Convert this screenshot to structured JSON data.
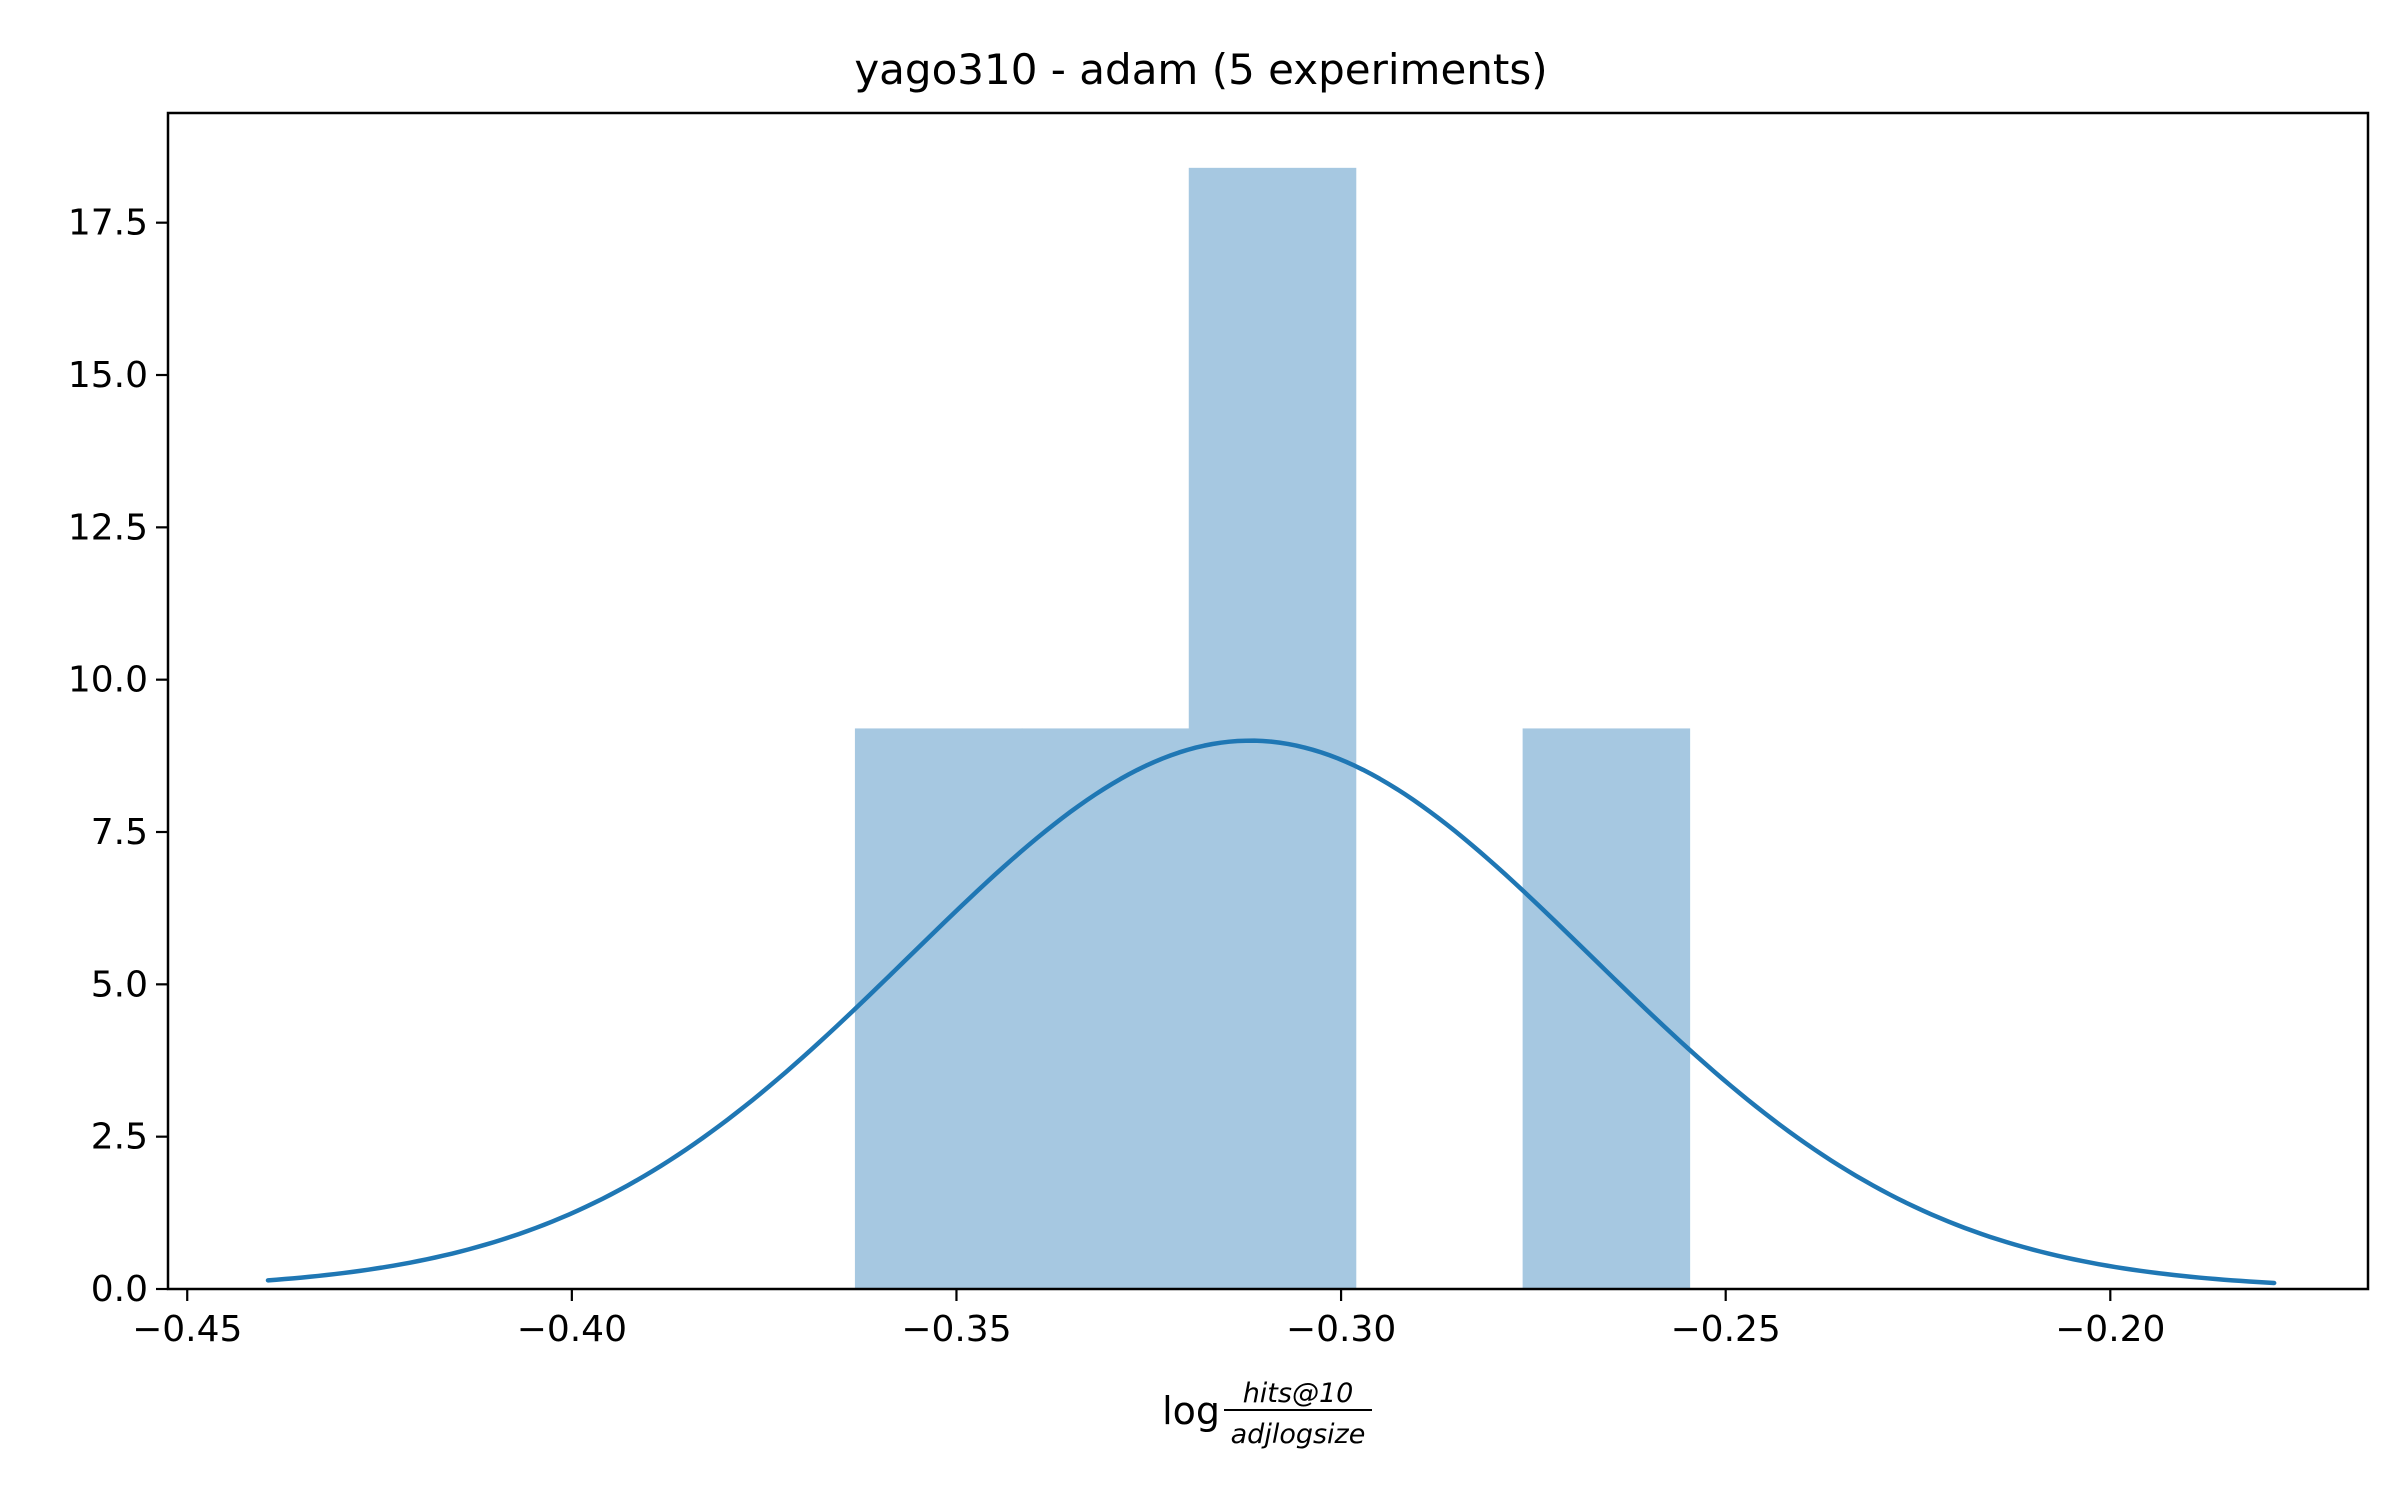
{
  "chart_data": {
    "type": "bar",
    "title": "yago310 - adam (5 experiments)",
    "xlabel": {
      "prefix": "log",
      "numerator": "hits@10",
      "denominator": "adjlogsize"
    },
    "ylabel": "",
    "xlim": [
      -0.4525,
      -0.1665
    ],
    "ylim": [
      0,
      19.3
    ],
    "xticks": [
      {
        "value": -0.45,
        "label": "−0.45"
      },
      {
        "value": -0.4,
        "label": "−0.40"
      },
      {
        "value": -0.35,
        "label": "−0.35"
      },
      {
        "value": -0.3,
        "label": "−0.30"
      },
      {
        "value": -0.25,
        "label": "−0.25"
      },
      {
        "value": -0.2,
        "label": "−0.20"
      }
    ],
    "yticks": [
      {
        "value": 0.0,
        "label": "0.0"
      },
      {
        "value": 2.5,
        "label": "2.5"
      },
      {
        "value": 5.0,
        "label": "5.0"
      },
      {
        "value": 7.5,
        "label": "7.5"
      },
      {
        "value": 10.0,
        "label": "10.0"
      },
      {
        "value": 12.5,
        "label": "12.5"
      },
      {
        "value": 15.0,
        "label": "15.0"
      },
      {
        "value": 17.5,
        "label": "17.5"
      }
    ],
    "histogram": {
      "color": "#a6c8e1",
      "bins": [
        {
          "x0": -0.3632,
          "x1": -0.3415,
          "height": 9.2
        },
        {
          "x0": -0.3415,
          "x1": -0.3198,
          "height": 9.2
        },
        {
          "x0": -0.3198,
          "x1": -0.2981,
          "height": 18.4
        },
        {
          "x0": -0.2981,
          "x1": -0.2764,
          "height": 0
        },
        {
          "x0": -0.2764,
          "x1": -0.2547,
          "height": 9.2
        }
      ]
    },
    "density_curve": {
      "color": "#1f77b4",
      "mean": -0.3118,
      "sd": 0.04433,
      "x_start": -0.4395,
      "x_end": -0.1787
    },
    "grid": false,
    "legend": "none"
  }
}
